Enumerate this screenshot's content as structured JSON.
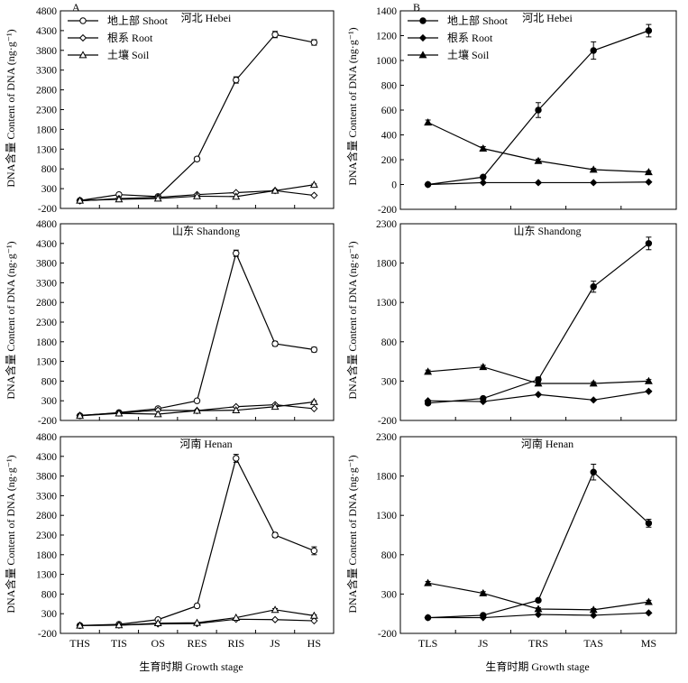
{
  "panel_labels": {
    "a": "A",
    "b": "B"
  },
  "ylabel": "DNA含量 Content of DNA (ng·g⁻¹)",
  "xlabel_a": "生育时期 Growth stage",
  "xlabel_b": "生育时期 Growth stage",
  "legend": {
    "shoot": "地上部 Shoot",
    "root": "根系 Root",
    "soil": "土壤 Soil"
  },
  "colors": {
    "line": "#000000",
    "background": "#ffffff"
  },
  "chart_data": [
    {
      "type": "line",
      "panel": "A",
      "region": "河北 Hebei",
      "show_legend": true,
      "marker": "open",
      "categories": [
        "THS",
        "TIS",
        "OS",
        "RES",
        "RIS",
        "JS",
        "HS"
      ],
      "ylim": [
        -200,
        4800
      ],
      "yticks": [
        -200,
        300,
        800,
        1300,
        1800,
        2300,
        2800,
        3300,
        3800,
        4300,
        4800
      ],
      "show_x_ticklabels": false,
      "series": [
        {
          "name": "地上部 Shoot",
          "marker": "circle",
          "values": [
            0,
            150,
            100,
            1050,
            3050,
            4200,
            4000
          ],
          "errors": [
            0,
            0,
            0,
            50,
            80,
            80,
            70
          ]
        },
        {
          "name": "根系 Root",
          "marker": "diamond",
          "values": [
            -10,
            50,
            80,
            150,
            200,
            250,
            130
          ],
          "errors": [
            0,
            0,
            0,
            0,
            0,
            0,
            0
          ]
        },
        {
          "name": "土壤 Soil",
          "marker": "triangle",
          "values": [
            0,
            30,
            50,
            110,
            100,
            250,
            400
          ],
          "errors": [
            0,
            0,
            0,
            0,
            0,
            20,
            20
          ]
        }
      ]
    },
    {
      "type": "line",
      "panel": "A",
      "region": "山东 Shandong",
      "show_legend": false,
      "marker": "open",
      "categories": [
        "THS",
        "TIS",
        "OS",
        "RES",
        "RIS",
        "JS",
        "HS"
      ],
      "ylim": [
        -200,
        4800
      ],
      "yticks": [
        -200,
        300,
        800,
        1300,
        1800,
        2300,
        2800,
        3300,
        3800,
        4300,
        4800
      ],
      "show_x_ticklabels": false,
      "series": [
        {
          "name": "地上部 Shoot",
          "marker": "circle",
          "values": [
            -80,
            0,
            100,
            300,
            4050,
            1750,
            1600
          ],
          "errors": [
            0,
            0,
            0,
            0,
            80,
            60,
            60
          ]
        },
        {
          "name": "根系 Root",
          "marker": "diamond",
          "values": [
            -70,
            -10,
            60,
            50,
            150,
            200,
            100
          ],
          "errors": [
            0,
            0,
            0,
            0,
            0,
            0,
            0
          ]
        },
        {
          "name": "土壤 Soil",
          "marker": "triangle",
          "values": [
            -80,
            -20,
            -40,
            50,
            60,
            150,
            270
          ],
          "errors": [
            0,
            0,
            0,
            0,
            0,
            0,
            30
          ]
        }
      ]
    },
    {
      "type": "line",
      "panel": "A",
      "region": "河南 Henan",
      "show_legend": false,
      "marker": "open",
      "categories": [
        "THS",
        "TIS",
        "OS",
        "RES",
        "RIS",
        "JS",
        "HS"
      ],
      "ylim": [
        -200,
        4800
      ],
      "yticks": [
        -200,
        300,
        800,
        1300,
        1800,
        2300,
        2800,
        3300,
        3800,
        4300,
        4800
      ],
      "show_x_ticklabels": true,
      "series": [
        {
          "name": "地上部 Shoot",
          "marker": "circle",
          "values": [
            0,
            30,
            150,
            500,
            4250,
            2300,
            1900
          ],
          "errors": [
            0,
            0,
            0,
            30,
            100,
            60,
            100
          ]
        },
        {
          "name": "根系 Root",
          "marker": "diamond",
          "values": [
            0,
            10,
            40,
            50,
            160,
            150,
            120
          ],
          "errors": [
            0,
            0,
            0,
            0,
            0,
            0,
            0
          ]
        },
        {
          "name": "土壤 Soil",
          "marker": "triangle",
          "values": [
            0,
            10,
            60,
            70,
            200,
            400,
            250
          ],
          "errors": [
            0,
            0,
            0,
            0,
            0,
            30,
            20
          ]
        }
      ]
    },
    {
      "type": "line",
      "panel": "B",
      "region": "河北 Hebei",
      "show_legend": true,
      "marker": "filled",
      "categories": [
        "TLS",
        "JS",
        "TRS",
        "TAS",
        "MS"
      ],
      "ylim": [
        -200,
        1400
      ],
      "yticks": [
        -200,
        0,
        200,
        400,
        600,
        800,
        1000,
        1200,
        1400
      ],
      "show_x_ticklabels": false,
      "series": [
        {
          "name": "地上部 Shoot",
          "marker": "circle",
          "values": [
            0,
            60,
            600,
            1080,
            1240
          ],
          "errors": [
            0,
            10,
            60,
            70,
            50
          ]
        },
        {
          "name": "根系 Root",
          "marker": "diamond",
          "values": [
            0,
            15,
            15,
            15,
            20
          ],
          "errors": [
            0,
            0,
            0,
            0,
            0
          ]
        },
        {
          "name": "土壤 Soil",
          "marker": "triangle",
          "values": [
            500,
            290,
            190,
            120,
            100
          ],
          "errors": [
            20,
            15,
            15,
            10,
            10
          ]
        }
      ]
    },
    {
      "type": "line",
      "panel": "B",
      "region": "山东 Shandong",
      "show_legend": false,
      "marker": "filled",
      "categories": [
        "TLS",
        "JS",
        "TRS",
        "TAS",
        "MS"
      ],
      "ylim": [
        -200,
        2300
      ],
      "yticks": [
        -200,
        300,
        800,
        1300,
        1800,
        2300
      ],
      "show_x_ticklabels": false,
      "series": [
        {
          "name": "地上部 Shoot",
          "marker": "circle",
          "values": [
            20,
            80,
            320,
            1500,
            2050
          ],
          "errors": [
            0,
            0,
            30,
            70,
            80
          ]
        },
        {
          "name": "根系 Root",
          "marker": "diamond",
          "values": [
            50,
            40,
            130,
            60,
            170
          ],
          "errors": [
            0,
            0,
            0,
            0,
            10
          ]
        },
        {
          "name": "土壤 Soil",
          "marker": "triangle",
          "values": [
            420,
            480,
            270,
            270,
            300
          ],
          "errors": [
            20,
            20,
            20,
            20,
            20
          ]
        }
      ]
    },
    {
      "type": "line",
      "panel": "B",
      "region": "河南 Henan",
      "show_legend": false,
      "marker": "filled",
      "categories": [
        "TLS",
        "JS",
        "TRS",
        "TAS",
        "MS"
      ],
      "ylim": [
        -200,
        2300
      ],
      "yticks": [
        -200,
        300,
        800,
        1300,
        1800,
        2300
      ],
      "show_x_ticklabels": true,
      "series": [
        {
          "name": "地上部 Shoot",
          "marker": "circle",
          "values": [
            0,
            30,
            220,
            1850,
            1200
          ],
          "errors": [
            0,
            0,
            0,
            100,
            50
          ]
        },
        {
          "name": "根系 Root",
          "marker": "diamond",
          "values": [
            0,
            0,
            40,
            30,
            60
          ],
          "errors": [
            0,
            0,
            0,
            0,
            0
          ]
        },
        {
          "name": "土壤 Soil",
          "marker": "triangle",
          "values": [
            440,
            310,
            110,
            100,
            200
          ],
          "errors": [
            20,
            20,
            15,
            15,
            20
          ]
        }
      ]
    }
  ]
}
